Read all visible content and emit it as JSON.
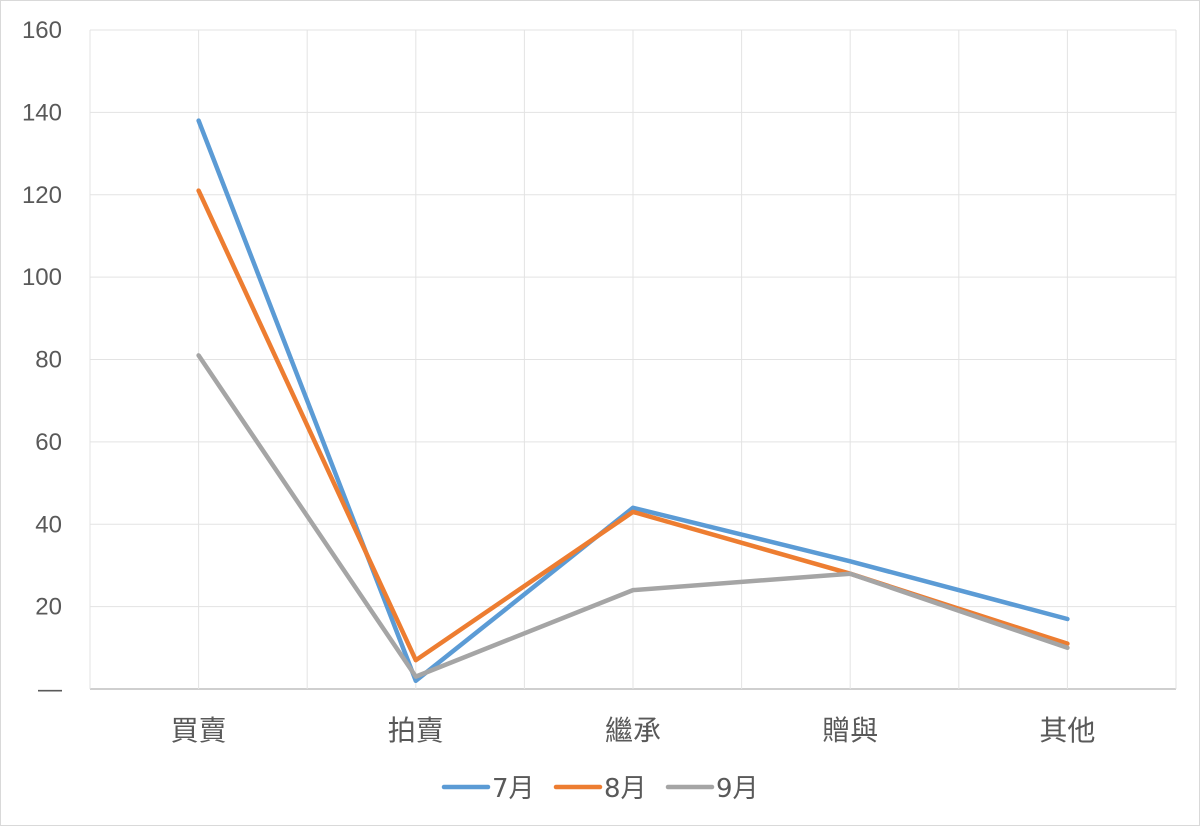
{
  "chart_data": {
    "type": "line",
    "title": "",
    "xlabel": "",
    "ylabel": "",
    "categories": [
      "買賣",
      "拍賣",
      "繼承",
      "贈與",
      "其他"
    ],
    "ylim": [
      0,
      160
    ],
    "yticks": [
      "—",
      "20",
      "40",
      "60",
      "80",
      "100",
      "120",
      "140",
      "160"
    ],
    "grid": true,
    "legend": "bottom",
    "series": [
      {
        "name": "7月",
        "color": "#5b9bd5",
        "values": [
          138,
          2,
          44,
          31,
          17
        ]
      },
      {
        "name": "8月",
        "color": "#ed7d31",
        "values": [
          121,
          7,
          43,
          28,
          11
        ]
      },
      {
        "name": "9月",
        "color": "#a5a5a5",
        "values": [
          81,
          3,
          24,
          28,
          10
        ]
      }
    ]
  }
}
